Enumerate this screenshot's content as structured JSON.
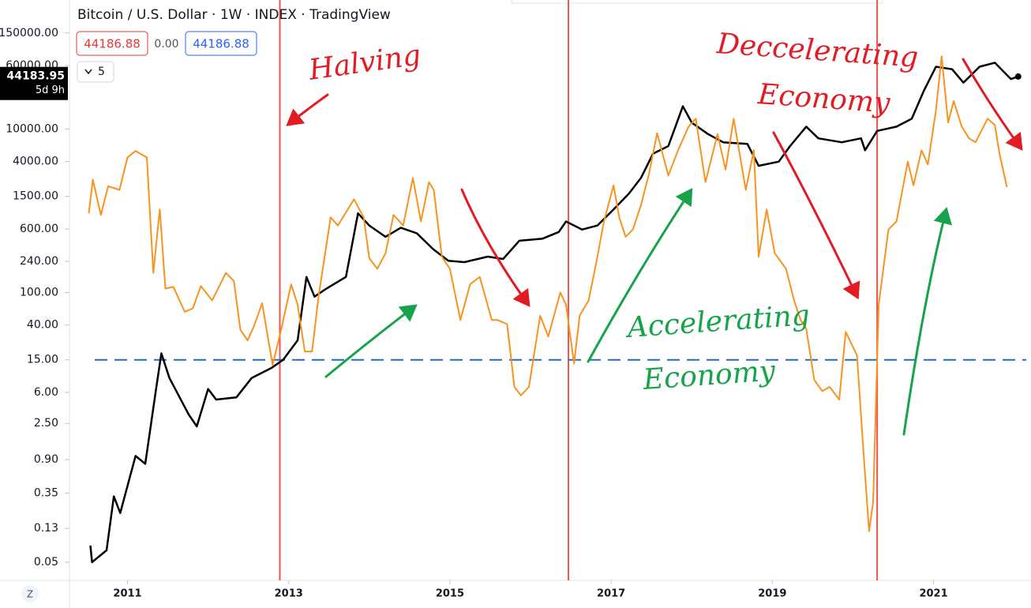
{
  "chart_data": {
    "type": "line",
    "title": "Bitcoin / U.S. Dollar · 1W · INDEX · TradingView",
    "header_values": [
      "44186.88",
      "0.00",
      "44186.88"
    ],
    "indicator_count": "5",
    "zoom_button": "Z",
    "log_scale": true,
    "xlim": [
      2010.28,
      2022.15
    ],
    "xticks": [
      2011,
      2013,
      2015,
      2017,
      2019,
      2021
    ],
    "ylim": [
      0.03,
      380000
    ],
    "yticks": [
      {
        "value": 150000,
        "label": "150000.00"
      },
      {
        "value": 60000,
        "label": "60000.00"
      },
      {
        "value": 10000,
        "label": "10000.00"
      },
      {
        "value": 4000,
        "label": "4000.00"
      },
      {
        "value": 1500,
        "label": "1500.00"
      },
      {
        "value": 600,
        "label": "600.00"
      },
      {
        "value": 240,
        "label": "240.00"
      },
      {
        "value": 100,
        "label": "100.00"
      },
      {
        "value": 40,
        "label": "40.00"
      },
      {
        "value": 15,
        "label": "15.00"
      },
      {
        "value": 6,
        "label": "6.00"
      },
      {
        "value": 2.5,
        "label": "2.50"
      },
      {
        "value": 0.9,
        "label": "0.90"
      },
      {
        "value": 0.35,
        "label": "0.35"
      },
      {
        "value": 0.13,
        "label": "0.13"
      },
      {
        "value": 0.05,
        "label": "0.05"
      }
    ],
    "price_tag": {
      "value": 44183.95,
      "countdown": "5d 9h"
    },
    "halving_lines": {
      "color": "#ef5350",
      "x": [
        2012.89,
        2016.47,
        2020.3
      ]
    },
    "threshold_line": {
      "color": "#1e6bc0",
      "value": 15
    },
    "series": [
      {
        "color": "#000000",
        "x": [
          2010.54,
          2010.56,
          2010.74,
          2010.83,
          2010.91,
          2011.1,
          2011.22,
          2011.35,
          2011.42,
          2011.52,
          2011.76,
          2011.86,
          2012.0,
          2012.1,
          2012.35,
          2012.54,
          2012.79,
          2012.93,
          2013.11,
          2013.22,
          2013.32,
          2013.47,
          2013.71,
          2013.86,
          2014.0,
          2014.2,
          2014.39,
          2014.59,
          2014.79,
          2014.98,
          2015.18,
          2015.47,
          2015.66,
          2015.86,
          2016.15,
          2016.35,
          2016.44,
          2016.64,
          2016.83,
          2017.03,
          2017.22,
          2017.37,
          2017.52,
          2017.71,
          2017.89,
          2018.0,
          2018.2,
          2018.39,
          2018.69,
          2018.83,
          2019.08,
          2019.22,
          2019.42,
          2019.57,
          2019.86,
          2020.1,
          2020.15,
          2020.3,
          2020.54,
          2020.73,
          2020.88,
          2021.03,
          2021.23,
          2021.37,
          2021.57,
          2021.76,
          2021.96,
          2022.05
        ],
        "values": [
          0.08,
          0.05,
          0.07,
          0.32,
          0.2,
          1.0,
          0.8,
          6.2,
          18,
          9,
          3.2,
          2.3,
          6.6,
          4.9,
          5.2,
          9,
          12,
          15,
          26,
          155,
          89,
          112,
          155,
          930,
          660,
          480,
          620,
          530,
          340,
          245,
          235,
          275,
          257,
          430,
          457,
          550,
          740,
          590,
          660,
          1040,
          1620,
          2520,
          5000,
          6200,
          19000,
          12000,
          8700,
          6900,
          6600,
          3550,
          4000,
          6200,
          10700,
          7700,
          6900,
          7700,
          5500,
          9500,
          10700,
          13400,
          29500,
          58000,
          54000,
          37000,
          58000,
          65000,
          41000,
          44000
        ]
      },
      {
        "color": "#f7931e",
        "x": [
          2010.52,
          2010.57,
          2010.67,
          2010.76,
          2010.9,
          2011.0,
          2011.1,
          2011.24,
          2011.32,
          2011.4,
          2011.47,
          2011.57,
          2011.71,
          2011.81,
          2011.91,
          2012.05,
          2012.22,
          2012.32,
          2012.4,
          2012.49,
          2012.57,
          2012.67,
          2012.8,
          2012.9,
          2013.03,
          2013.11,
          2013.2,
          2013.29,
          2013.37,
          2013.52,
          2013.61,
          2013.81,
          2013.93,
          2014.0,
          2014.1,
          2014.2,
          2014.3,
          2014.42,
          2014.54,
          2014.64,
          2014.74,
          2014.8,
          2014.9,
          2015.0,
          2015.13,
          2015.25,
          2015.37,
          2015.52,
          2015.59,
          2015.71,
          2015.8,
          2015.88,
          2015.98,
          2016.12,
          2016.22,
          2016.37,
          2016.44,
          2016.54,
          2016.61,
          2016.72,
          2016.82,
          2016.91,
          2017.03,
          2017.1,
          2017.18,
          2017.27,
          2017.37,
          2017.47,
          2017.57,
          2017.71,
          2017.83,
          2017.96,
          2018.05,
          2018.17,
          2018.32,
          2018.42,
          2018.52,
          2018.67,
          2018.77,
          2018.83,
          2018.93,
          2019.03,
          2019.17,
          2019.27,
          2019.35,
          2019.42,
          2019.52,
          2019.62,
          2019.71,
          2019.83,
          2019.91,
          2020.05,
          2020.13,
          2020.2,
          2020.25,
          2020.32,
          2020.44,
          2020.54,
          2020.68,
          2020.75,
          2020.85,
          2020.93,
          2021.03,
          2021.1,
          2021.18,
          2021.25,
          2021.35,
          2021.44,
          2021.52,
          2021.67,
          2021.76,
          2021.82,
          2021.91
        ],
        "values": [
          930,
          2400,
          890,
          2000,
          1800,
          4500,
          5400,
          4500,
          174,
          1040,
          112,
          117,
          58,
          64,
          120,
          80,
          174,
          138,
          35,
          26,
          39,
          74,
          13,
          33,
          126,
          71,
          19,
          19,
          89,
          830,
          660,
          1380,
          830,
          263,
          195,
          302,
          890,
          660,
          2520,
          740,
          2240,
          1800,
          275,
          195,
          46,
          126,
          155,
          46,
          46,
          41,
          7,
          5.5,
          7,
          52,
          29,
          100,
          71,
          13.5,
          52,
          80,
          245,
          740,
          2050,
          830,
          480,
          590,
          1170,
          2830,
          8900,
          2700,
          5500,
          10700,
          13400,
          2240,
          8700,
          3200,
          13400,
          1800,
          5500,
          275,
          1040,
          302,
          195,
          80,
          46,
          36,
          8.5,
          6.2,
          7,
          4.9,
          33,
          17,
          1.15,
          0.12,
          0.27,
          71,
          590,
          740,
          4000,
          2050,
          5500,
          3700,
          17000,
          78000,
          12000,
          22000,
          10700,
          7700,
          6900,
          13400,
          11200,
          4900,
          1950
        ]
      }
    ],
    "annotations": [
      {
        "color": "#e31b23",
        "lines": [
          "Halving"
        ]
      },
      {
        "color": "#e31b23",
        "lines": [
          "Deccelerating",
          "Economy"
        ]
      },
      {
        "color": "#16a34a",
        "lines": [
          "Accelerating",
          "Economy"
        ]
      }
    ]
  }
}
